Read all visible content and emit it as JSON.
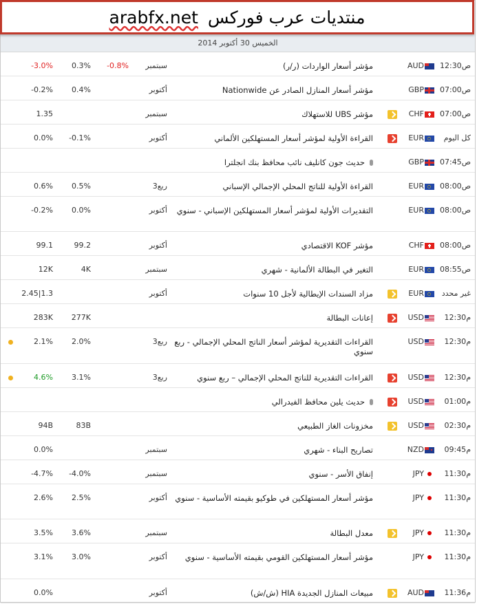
{
  "banner": {
    "site": "arabfx.net",
    "title": "منتديات عرب فوركس"
  },
  "day_header": "الخميس 30 أكتوبر 2014",
  "colors": {
    "banner_border": "#c0392b",
    "high": "#e7412f",
    "medium": "#f6993a",
    "low": "#f3c22c",
    "negative": "#e01f1f",
    "positive": "#1d9a25",
    "dot": "#f0b11f"
  },
  "rows": [
    {
      "time": "12:30ص",
      "flag": "au-flag-icon",
      "currency": "AUD",
      "importance": "medium",
      "event": "مؤشر أسعار الواردات (ر/ر)",
      "period": "سبتمبر",
      "previous": "-0.8%",
      "forecast": "0.3%",
      "actual": "-3.0%",
      "actual_color": "negative"
    },
    {
      "time": "07:00ص",
      "flag": "gb-flag-icon",
      "currency": "GBP",
      "importance": "medium",
      "event": "مؤشر أسعار المنازل الصادر عن Nationwide",
      "period": "أكتوبر",
      "previous": "",
      "forecast": "0.4%",
      "actual": "-0.2%"
    },
    {
      "time": "07:00ص",
      "flag": "ch-flag-icon",
      "currency": "CHF",
      "importance": "low",
      "event": "مؤشر UBS للاستهلاك",
      "period": "سبتمبر",
      "previous": "",
      "forecast": "",
      "actual": "1.35"
    },
    {
      "time": "كل اليوم",
      "flag": "eu-flag-icon",
      "currency": "EUR",
      "importance": "high",
      "event": "القراءة الأولية لمؤشر أسعار المستهلكين الألماني",
      "period": "أكتوبر",
      "previous": "",
      "forecast": "-0.1%",
      "actual": "0.0%"
    },
    {
      "time": "07:45ص",
      "flag": "gb-flag-icon",
      "currency": "GBP",
      "importance": "medium",
      "event": "حديث جون كانليف نائب محافظ بنك انجلترا",
      "speech": true,
      "period": "",
      "previous": "",
      "forecast": "",
      "actual": ""
    },
    {
      "time": "08:00ص",
      "flag": "eu-flag-icon",
      "currency": "EUR",
      "importance": "medium",
      "event": "القراءة الأولية للناتج المحلي الإجمالي الإسباني",
      "period": "ربع3",
      "previous": "",
      "forecast": "0.5%",
      "actual": "0.6%"
    },
    {
      "time": "08:00ص",
      "flag": "eu-flag-icon",
      "currency": "EUR",
      "importance": "medium",
      "event": "التقديرات الأولية لمؤشر أسعار المستهلكين الإسباني - سنوي",
      "period": "أكتوبر",
      "previous": "",
      "forecast": "0.0%",
      "actual": "-0.2%"
    },
    {
      "time": "08:00ص",
      "flag": "ch-flag-icon",
      "currency": "CHF",
      "importance": "medium",
      "event": "مؤشر KOF الاقتصادي",
      "period": "أكتوبر",
      "previous": "",
      "forecast": "99.2",
      "actual": "99.1"
    },
    {
      "time": "08:55ص",
      "flag": "eu-flag-icon",
      "currency": "EUR",
      "importance": "medium",
      "event": "التغير في البطالة الألمانية - شهري",
      "period": "سبتمبر",
      "previous": "",
      "forecast": "4K",
      "actual": "12K"
    },
    {
      "time": "غير محدد",
      "flag": "eu-flag-icon",
      "currency": "EUR",
      "importance": "low",
      "event": "مزاد السندات الإيطالية لأجل 10 سنوات",
      "period": "أكتوبر",
      "previous": "",
      "forecast": "",
      "actual": "2.45|1.3"
    },
    {
      "time": "12:30م",
      "flag": "us-flag-icon",
      "currency": "USD",
      "importance": "high",
      "event": "إعانات البطالة",
      "period": "",
      "previous": "",
      "forecast": "277K",
      "actual": "283K"
    },
    {
      "time": "12:30م",
      "flag": "us-flag-icon",
      "currency": "USD",
      "importance": "medium",
      "event": "القراءات التقديرية لمؤشر أسعار الناتج المحلي الإجمالي - ربع سنوي",
      "period": "ربع3",
      "previous": "",
      "forecast": "2.0%",
      "actual": "2.1%",
      "dot": true
    },
    {
      "time": "12:30م",
      "flag": "us-flag-icon",
      "currency": "USD",
      "importance": "high",
      "event": "القراءات التقديرية للناتج المحلي الإجمالي – ربع سنوي",
      "period": "ربع3",
      "previous": "",
      "forecast": "3.1%",
      "actual": "4.6%",
      "actual_color": "positive",
      "dot": true
    },
    {
      "time": "01:00م",
      "flag": "us-flag-icon",
      "currency": "USD",
      "importance": "high",
      "event": "حديث يلين محافظ الفيدرالي",
      "speech": true,
      "period": "",
      "previous": "",
      "forecast": "",
      "actual": ""
    },
    {
      "time": "02:30م",
      "flag": "us-flag-icon",
      "currency": "USD",
      "importance": "low",
      "event": "مخزونات الغاز الطبيعي",
      "period": "",
      "previous": "",
      "forecast": "83B",
      "actual": "94B"
    },
    {
      "time": "09:45م",
      "flag": "nz-flag-icon",
      "currency": "NZD",
      "importance": "medium",
      "event": "تصاريح البناء - شهري",
      "period": "سبتمبر",
      "previous": "",
      "forecast": "",
      "actual": "0.0%"
    },
    {
      "time": "11:30م",
      "flag": "jp-flag-icon",
      "currency": "JPY",
      "importance": "medium",
      "event": "إنفاق الأسر - سنوي",
      "period": "سبتمبر",
      "previous": "",
      "forecast": "-4.0%",
      "actual": "-4.7%"
    },
    {
      "time": "11:30م",
      "flag": "jp-flag-icon",
      "currency": "JPY",
      "importance": "medium",
      "event": "مؤشر أسعار المستهلكين في طوكيو بقيمته الأساسية - سنوي",
      "period": "أكتوبر",
      "previous": "",
      "forecast": "2.5%",
      "actual": "2.6%"
    },
    {
      "time": "11:30م",
      "flag": "jp-flag-icon",
      "currency": "JPY",
      "importance": "low",
      "event": "معدل البطالة",
      "period": "سبتمبر",
      "previous": "",
      "forecast": "3.6%",
      "actual": "3.5%"
    },
    {
      "time": "11:30م",
      "flag": "jp-flag-icon",
      "currency": "JPY",
      "importance": "medium",
      "event": "مؤشر أسعار المستهلكين القومي بقيمته الأساسية - سنوي",
      "period": "أكتوبر",
      "previous": "",
      "forecast": "3.0%",
      "actual": "3.1%"
    },
    {
      "time": "11:36م",
      "flag": "au-flag-icon",
      "currency": "AUD",
      "importance": "low",
      "event": "مبيعات المنازل الجديدة HIA (ش/ش)",
      "period": "أكتوبر",
      "previous": "",
      "forecast": "",
      "actual": "0.0%"
    }
  ]
}
